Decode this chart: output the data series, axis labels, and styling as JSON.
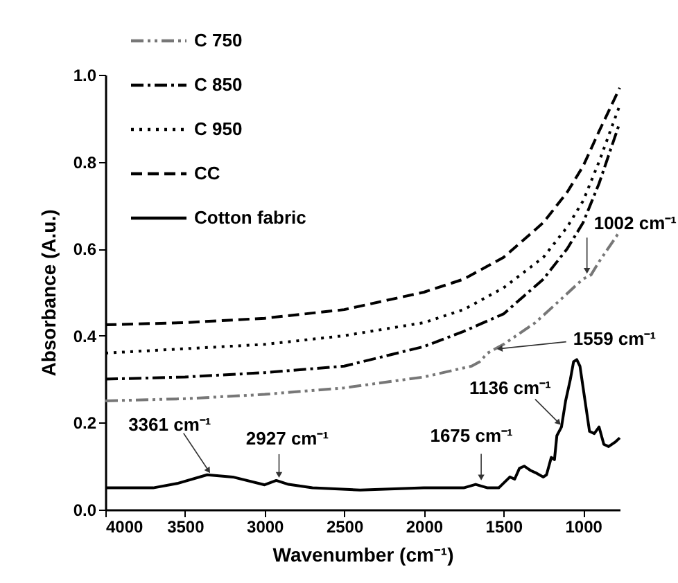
{
  "chart_data": {
    "type": "line",
    "xlabel": "Wavenumber (cm⁻¹)",
    "ylabel": "Absorbance (A.u.)",
    "xlim": [
      4000,
      770
    ],
    "ylim": [
      0,
      1.0
    ],
    "xticks": [
      4000,
      3500,
      3000,
      2500,
      2000,
      1500,
      1000
    ],
    "yticks": [
      {
        "value": 0,
        "label": "0.0"
      },
      0.2,
      0.4,
      0.6,
      0.8,
      {
        "value": 1.0,
        "label": "1.0"
      }
    ],
    "legend": "top left",
    "series": [
      {
        "name": "C 750",
        "color": "#777777",
        "line_style": "dashdotdot",
        "x": [
          4000,
          3500,
          3000,
          2500,
          2000,
          1700,
          1650,
          1600,
          1500,
          1300,
          1150,
          1002,
          950,
          900,
          770
        ],
        "values": [
          0.25,
          0.255,
          0.265,
          0.28,
          0.305,
          0.33,
          0.34,
          0.36,
          0.38,
          0.43,
          0.48,
          0.53,
          0.54,
          0.57,
          0.64
        ]
      },
      {
        "name": "C 850",
        "color": "#000000",
        "line_style": "dashdot",
        "x": [
          4000,
          3500,
          3000,
          2500,
          2000,
          1750,
          1500,
          1250,
          1100,
          1000,
          900,
          770
        ],
        "values": [
          0.3,
          0.305,
          0.315,
          0.33,
          0.375,
          0.41,
          0.45,
          0.53,
          0.6,
          0.66,
          0.75,
          0.89
        ]
      },
      {
        "name": "C 950",
        "color": "#000000",
        "line_style": "dotted",
        "x": [
          4000,
          3500,
          3000,
          2500,
          2000,
          1750,
          1500,
          1250,
          1100,
          1000,
          900,
          770
        ],
        "values": [
          0.36,
          0.37,
          0.38,
          0.4,
          0.43,
          0.46,
          0.51,
          0.58,
          0.65,
          0.71,
          0.8,
          0.93
        ]
      },
      {
        "name": "CC",
        "color": "#000000",
        "line_style": "dashed",
        "x": [
          4000,
          3500,
          3000,
          2500,
          2000,
          1750,
          1500,
          1250,
          1100,
          1000,
          900,
          770
        ],
        "values": [
          0.425,
          0.43,
          0.44,
          0.46,
          0.5,
          0.53,
          0.58,
          0.66,
          0.73,
          0.79,
          0.87,
          0.97
        ]
      },
      {
        "name": "Cotton fabric",
        "color": "#000000",
        "line_style": "solid",
        "x": [
          4000,
          3700,
          3550,
          3361,
          3200,
          3000,
          2927,
          2850,
          2700,
          2400,
          2000,
          1750,
          1675,
          1600,
          1530,
          1460,
          1430,
          1400,
          1370,
          1330,
          1300,
          1250,
          1230,
          1200,
          1180,
          1165,
          1136,
          1110,
          1080,
          1060,
          1040,
          1020,
          1000,
          960,
          930,
          900,
          870,
          840,
          800,
          770
        ],
        "values": [
          0.05,
          0.05,
          0.06,
          0.08,
          0.075,
          0.057,
          0.067,
          0.058,
          0.05,
          0.045,
          0.05,
          0.05,
          0.058,
          0.05,
          0.05,
          0.075,
          0.07,
          0.095,
          0.1,
          0.09,
          0.085,
          0.075,
          0.08,
          0.12,
          0.115,
          0.17,
          0.19,
          0.25,
          0.3,
          0.34,
          0.345,
          0.33,
          0.28,
          0.18,
          0.175,
          0.19,
          0.15,
          0.145,
          0.155,
          0.165
        ]
      }
    ],
    "annotations": [
      {
        "text": "3361 cm⁻¹",
        "x": 3361,
        "y": 0.08
      },
      {
        "text": "2927 cm⁻¹",
        "x": 2927,
        "y": 0.067
      },
      {
        "text": "1675 cm⁻¹",
        "x": 1675,
        "y": 0.058
      },
      {
        "text": "1136 cm⁻¹",
        "x": 1136,
        "y": 0.19
      },
      {
        "text": "1559 cm⁻¹",
        "x": 1559,
        "y": 0.37
      },
      {
        "text": "1002 cm⁻¹",
        "x": 1002,
        "y": 0.53
      }
    ]
  }
}
